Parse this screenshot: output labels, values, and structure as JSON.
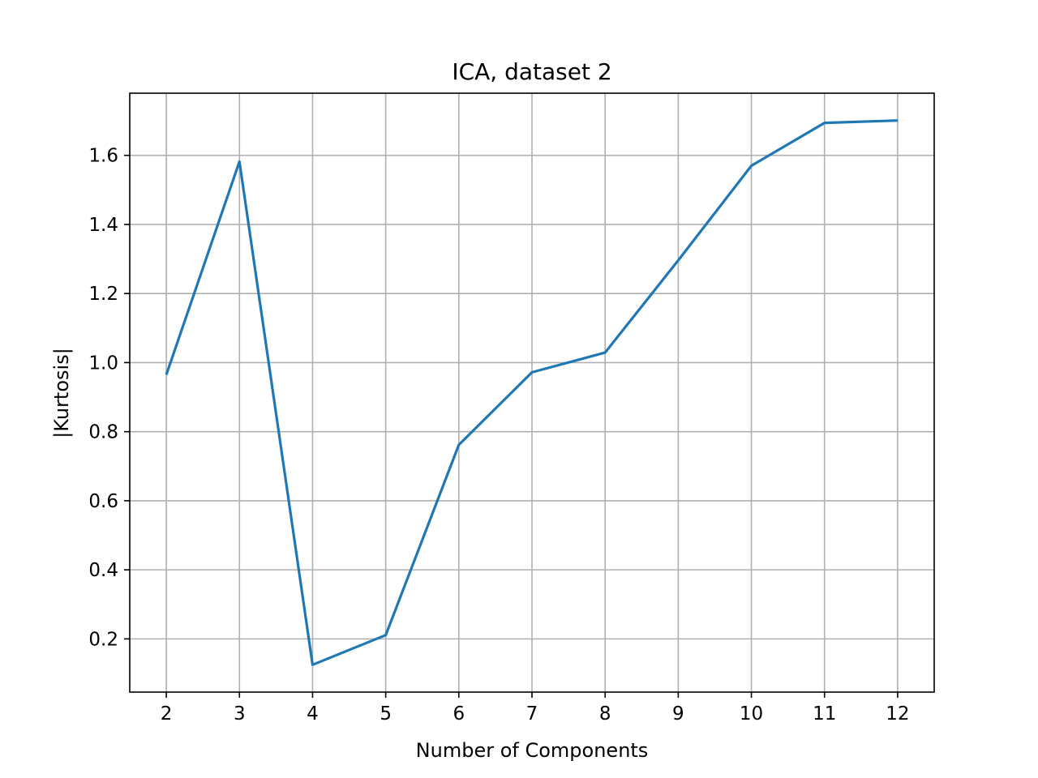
{
  "chart_data": {
    "type": "line",
    "title": "ICA, dataset 2",
    "xlabel": "Number of Components",
    "ylabel": "|Kurtosis|",
    "x": [
      2,
      3,
      4,
      5,
      6,
      7,
      8,
      9,
      10,
      11,
      12
    ],
    "x_ticks": [
      "2",
      "3",
      "4",
      "5",
      "6",
      "7",
      "8",
      "9",
      "10",
      "11",
      "12"
    ],
    "y_ticks": [
      "0.2",
      "0.4",
      "0.6",
      "0.8",
      "1.0",
      "1.2",
      "1.4",
      "1.6"
    ],
    "xlim": [
      1.5,
      12.5
    ],
    "ylim": [
      0.046,
      1.78
    ],
    "grid": true,
    "series": [
      {
        "values": [
          0.965,
          1.582,
          0.125,
          0.211,
          0.762,
          0.972,
          1.029,
          1.296,
          1.57,
          1.694,
          1.701
        ],
        "color": "#1f77b4"
      }
    ]
  }
}
